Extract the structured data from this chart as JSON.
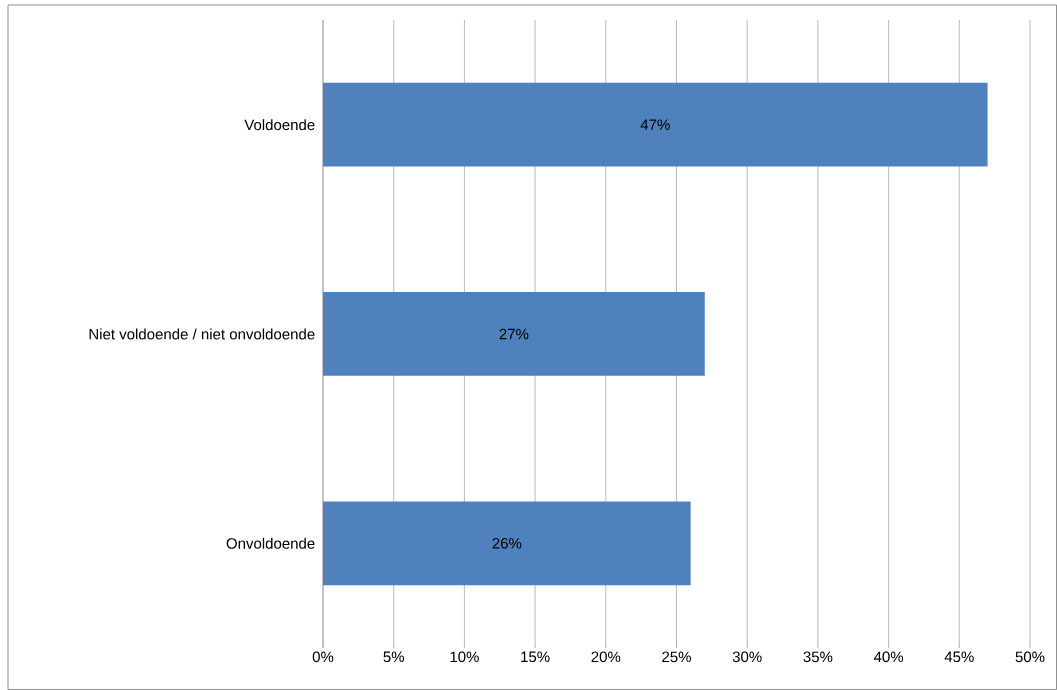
{
  "chart_data": {
    "type": "bar",
    "orientation": "horizontal",
    "categories": [
      "Voldoende",
      "Niet voldoende / niet onvoldoende",
      "Onvoldoende"
    ],
    "values": [
      47,
      27,
      26
    ],
    "value_labels": [
      "47%",
      "27%",
      "26%"
    ],
    "color": "#4f81bd",
    "xlim": [
      0,
      50
    ],
    "xticks": [
      {
        "value": 0,
        "label": "0%"
      },
      {
        "value": 5,
        "label": "5%"
      },
      {
        "value": 10,
        "label": "10%"
      },
      {
        "value": 15,
        "label": "15%"
      },
      {
        "value": 20,
        "label": "20%"
      },
      {
        "value": 25,
        "label": "25%"
      },
      {
        "value": 30,
        "label": "30%"
      },
      {
        "value": 35,
        "label": "35%"
      },
      {
        "value": 40,
        "label": "40%"
      },
      {
        "value": 45,
        "label": "45%"
      },
      {
        "value": 50,
        "label": "50%"
      }
    ],
    "grid": "x"
  }
}
